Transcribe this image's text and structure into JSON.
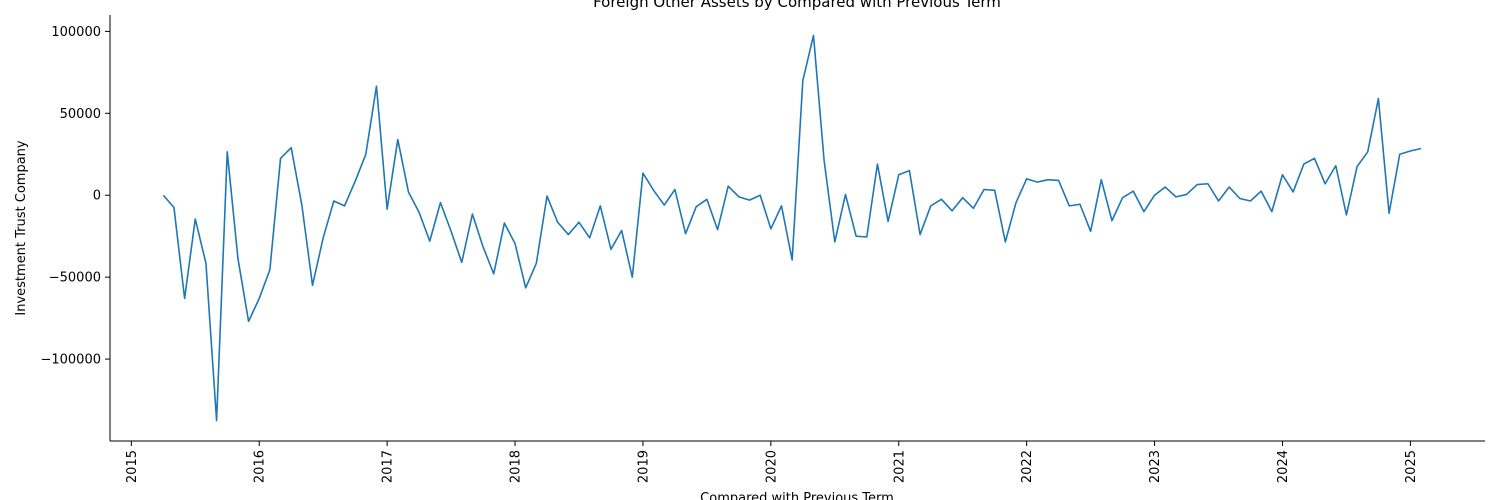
{
  "chart_data": {
    "type": "line",
    "title": "Foreign Other Assets by Compared with Previous Term",
    "xlabel": "Compared with Previous Term",
    "ylabel": "Investment Trust Company",
    "xlim": [
      "2014-11-01",
      "2025-08-01"
    ],
    "ylim": [
      -150000,
      110000
    ],
    "grid": false,
    "x_ticks": [
      "2015",
      "2016",
      "2017",
      "2018",
      "2019",
      "2020",
      "2021",
      "2022",
      "2023",
      "2024",
      "2025"
    ],
    "y_ticks": [
      -100000,
      -50000,
      0,
      50000,
      100000
    ],
    "y_tick_labels": [
      "−100000",
      "−50000",
      "0",
      "50000",
      "100000"
    ],
    "series_color": "#1f77b4",
    "series": [
      {
        "x": [
          "2015-04",
          "2015-05",
          "2015-06",
          "2015-07",
          "2015-08",
          "2015-09",
          "2015-10",
          "2015-11",
          "2015-12",
          "2016-01",
          "2016-02",
          "2016-03",
          "2016-04",
          "2016-05",
          "2016-06",
          "2016-07",
          "2016-08",
          "2016-09",
          "2016-10",
          "2016-11",
          "2016-12",
          "2017-01",
          "2017-02",
          "2017-03",
          "2017-04",
          "2017-05",
          "2017-06",
          "2017-07",
          "2017-08",
          "2017-09",
          "2017-10",
          "2017-11",
          "2017-12",
          "2018-01",
          "2018-02",
          "2018-03",
          "2018-04",
          "2018-05",
          "2018-06",
          "2018-07",
          "2018-08",
          "2018-09",
          "2018-10",
          "2018-11",
          "2018-12",
          "2019-01",
          "2019-02",
          "2019-03",
          "2019-04",
          "2019-05",
          "2019-06",
          "2019-07",
          "2019-08",
          "2019-09",
          "2019-10",
          "2019-11",
          "2019-12",
          "2020-01",
          "2020-02",
          "2020-03",
          "2020-04",
          "2020-05",
          "2020-06",
          "2020-07",
          "2020-08",
          "2020-09",
          "2020-10",
          "2020-11",
          "2020-12",
          "2021-01",
          "2021-02",
          "2021-03",
          "2021-04",
          "2021-05",
          "2021-06",
          "2021-07",
          "2021-08",
          "2021-09",
          "2021-10",
          "2021-11",
          "2021-12",
          "2022-01",
          "2022-02",
          "2022-03",
          "2022-04",
          "2022-05",
          "2022-06",
          "2022-07",
          "2022-08",
          "2022-09",
          "2022-10",
          "2022-11",
          "2022-12",
          "2023-01",
          "2023-02",
          "2023-03",
          "2023-04",
          "2023-05",
          "2023-06",
          "2023-07",
          "2023-08",
          "2023-09",
          "2023-10",
          "2023-11",
          "2023-12",
          "2024-01",
          "2024-02",
          "2024-03",
          "2024-04",
          "2024-05",
          "2024-06",
          "2024-07",
          "2024-08",
          "2024-09",
          "2024-10",
          "2024-11",
          "2024-12",
          "2025-01",
          "2025-02"
        ],
        "values": [
          0,
          -7500,
          -63000,
          -14500,
          -41500,
          -137500,
          26500,
          -38500,
          -77000,
          -63000,
          -45500,
          22500,
          29000,
          -6000,
          -55000,
          -26000,
          -3500,
          -6500,
          8500,
          25000,
          66500,
          -8500,
          34000,
          2000,
          -10500,
          -28000,
          -4500,
          -22000,
          -41000,
          -11500,
          -31500,
          -48000,
          -17000,
          -29500,
          -56500,
          -41500,
          -500,
          -16500,
          -24000,
          -16500,
          -26000,
          -6500,
          -33000,
          -21500,
          -50000,
          13500,
          3000,
          -6000,
          3500,
          -23500,
          -7000,
          -2500,
          -21000,
          5500,
          -1000,
          -3000,
          0,
          -20500,
          -6500,
          -39500,
          70000,
          97500,
          21000,
          -28500,
          500,
          -25000,
          -25500,
          19000,
          -16000,
          12500,
          15000,
          -24000,
          -6500,
          -2500,
          -9500,
          -1500,
          -8000,
          3500,
          3000,
          -28500,
          -4500,
          10000,
          8000,
          9500,
          9000,
          -6500,
          -5500,
          -22000,
          9500,
          -15500,
          -1500,
          2500,
          -10000,
          0,
          5000,
          -1000,
          500,
          6500,
          7000,
          -3500,
          5000,
          -2000,
          -3500,
          2500,
          -10000,
          12500,
          2000,
          19000,
          22500,
          7000,
          18000,
          -12000,
          17500,
          26500,
          59000,
          -11000,
          25000,
          27000,
          28500
        ]
      }
    ]
  }
}
